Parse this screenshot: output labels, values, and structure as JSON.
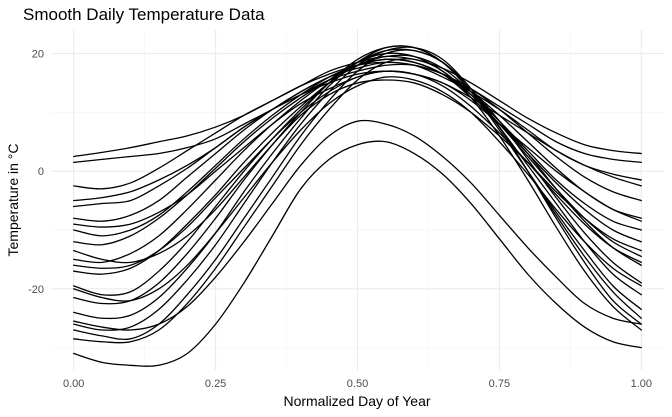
{
  "chart_data": {
    "type": "line",
    "title": "Smooth Daily Temperature Data",
    "xlabel": "Normalized Day of Year",
    "ylabel": "Temperature in °C",
    "xlim": [
      -0.04,
      1.04
    ],
    "ylim": [
      -33.8,
      24.0
    ],
    "x_ticks": [
      0.0,
      0.25,
      0.5,
      0.75,
      1.0
    ],
    "x_tick_labels": [
      "0.00",
      "0.25",
      "0.50",
      "0.75",
      "1.00"
    ],
    "y_ticks": [
      -20,
      0,
      20
    ],
    "y_tick_labels": [
      "-20",
      "0",
      "20"
    ],
    "grid": true,
    "legend": "none",
    "line_color": "#000000",
    "x": [
      0.0,
      0.05,
      0.1,
      0.15,
      0.2,
      0.25,
      0.3,
      0.35,
      0.4,
      0.45,
      0.5,
      0.55,
      0.6,
      0.65,
      0.7,
      0.75,
      0.8,
      0.85,
      0.9,
      0.95,
      1.0
    ],
    "series": [
      {
        "values": [
          2.5,
          3.2,
          4.0,
          5.0,
          6.0,
          7.5,
          9.5,
          12.0,
          14.5,
          17.0,
          18.5,
          19.5,
          19.0,
          17.5,
          15.0,
          12.0,
          9.0,
          6.5,
          4.5,
          3.5,
          3.0
        ]
      },
      {
        "values": [
          1.5,
          2.0,
          2.5,
          3.0,
          4.0,
          5.5,
          8.0,
          10.5,
          13.0,
          15.5,
          17.0,
          18.0,
          18.0,
          16.5,
          14.0,
          11.0,
          8.0,
          5.0,
          3.0,
          2.0,
          1.5
        ]
      },
      {
        "values": [
          -2.5,
          -3.0,
          -2.0,
          0.5,
          3.5,
          6.5,
          9.5,
          12.0,
          14.5,
          16.5,
          18.0,
          18.5,
          18.0,
          16.0,
          13.5,
          10.5,
          7.0,
          3.5,
          1.0,
          -0.5,
          -1.5
        ]
      },
      {
        "values": [
          -6.0,
          -5.5,
          -5.0,
          -2.5,
          0.5,
          4.0,
          7.5,
          10.5,
          13.5,
          16.0,
          17.5,
          18.5,
          18.0,
          16.5,
          14.0,
          10.5,
          6.5,
          2.5,
          -1.0,
          -3.5,
          -5.0
        ]
      },
      {
        "values": [
          -8.0,
          -8.5,
          -7.5,
          -5.0,
          -1.0,
          3.0,
          7.0,
          10.5,
          13.5,
          16.0,
          18.0,
          19.0,
          18.5,
          16.5,
          13.5,
          9.5,
          5.0,
          0.5,
          -3.5,
          -6.5,
          -8.0
        ]
      },
      {
        "values": [
          -10.0,
          -11.0,
          -10.0,
          -7.5,
          -3.5,
          1.0,
          5.5,
          9.5,
          13.0,
          16.0,
          18.0,
          19.0,
          18.5,
          16.5,
          13.0,
          8.5,
          3.5,
          -1.5,
          -5.5,
          -8.5,
          -10.0
        ]
      },
      {
        "values": [
          -12.0,
          -12.5,
          -11.0,
          -8.0,
          -4.0,
          0.5,
          5.0,
          9.0,
          12.5,
          15.5,
          18.0,
          19.0,
          18.5,
          16.5,
          12.5,
          8.0,
          3.0,
          -2.0,
          -6.5,
          -10.0,
          -12.0
        ]
      },
      {
        "values": [
          -15.0,
          -15.5,
          -14.0,
          -11.0,
          -6.5,
          -1.5,
          3.5,
          8.0,
          12.0,
          15.5,
          18.5,
          20.0,
          19.5,
          17.0,
          13.0,
          8.0,
          2.5,
          -3.0,
          -8.0,
          -12.0,
          -14.5
        ]
      },
      {
        "values": [
          -17.0,
          -17.5,
          -16.5,
          -13.5,
          -9.0,
          -4.0,
          1.5,
          6.5,
          11.0,
          15.0,
          18.0,
          19.5,
          19.5,
          17.5,
          13.5,
          8.5,
          3.0,
          -3.0,
          -8.5,
          -13.0,
          -16.0
        ]
      },
      {
        "values": [
          -19.5,
          -21.0,
          -20.5,
          -17.0,
          -12.0,
          -6.0,
          0.0,
          5.5,
          10.5,
          15.0,
          18.5,
          20.5,
          20.5,
          18.5,
          14.0,
          8.5,
          2.0,
          -4.5,
          -10.5,
          -15.5,
          -19.0
        ]
      },
      {
        "values": [
          -21.5,
          -22.5,
          -22.0,
          -19.0,
          -14.0,
          -8.0,
          -1.5,
          4.5,
          10.0,
          15.0,
          19.0,
          21.0,
          21.0,
          18.5,
          13.5,
          7.5,
          1.0,
          -5.5,
          -12.0,
          -17.5,
          -21.0
        ]
      },
      {
        "values": [
          -24.0,
          -25.0,
          -24.5,
          -21.5,
          -16.5,
          -10.5,
          -3.5,
          3.0,
          9.0,
          14.5,
          18.5,
          21.0,
          21.0,
          18.5,
          13.5,
          7.0,
          0.0,
          -7.0,
          -13.5,
          -19.5,
          -23.5
        ]
      },
      {
        "values": [
          -26.0,
          -27.0,
          -26.5,
          -23.5,
          -18.5,
          -12.5,
          -5.5,
          1.5,
          8.0,
          13.5,
          18.0,
          20.5,
          21.0,
          19.0,
          14.0,
          7.5,
          0.0,
          -7.5,
          -14.5,
          -20.5,
          -25.0
        ]
      },
      {
        "values": [
          -27.0,
          -28.0,
          -28.5,
          -26.0,
          -21.0,
          -15.0,
          -8.0,
          -1.0,
          6.0,
          12.0,
          17.0,
          20.0,
          20.5,
          18.5,
          14.0,
          7.5,
          0.0,
          -8.0,
          -15.5,
          -22.0,
          -26.0
        ]
      },
      {
        "values": [
          -28.5,
          -29.0,
          -29.0,
          -27.0,
          -22.5,
          -16.5,
          -9.5,
          -2.5,
          4.5,
          10.5,
          15.5,
          18.5,
          19.0,
          17.0,
          12.5,
          6.0,
          -1.5,
          -9.5,
          -17.0,
          -23.0,
          -27.0
        ]
      },
      {
        "values": [
          -31.0,
          -32.5,
          -33.0,
          -33.0,
          -31.0,
          -26.0,
          -19.0,
          -11.0,
          -3.0,
          2.0,
          4.5,
          5.0,
          3.0,
          -0.5,
          -5.5,
          -11.5,
          -17.5,
          -22.5,
          -26.5,
          -29.0,
          -30.0
        ]
      },
      {
        "values": [
          -25.5,
          -26.5,
          -27.0,
          -26.0,
          -23.0,
          -18.0,
          -12.0,
          -5.5,
          1.0,
          6.0,
          8.5,
          8.0,
          6.0,
          2.5,
          -2.0,
          -7.5,
          -13.0,
          -18.0,
          -22.5,
          -25.0,
          -26.0
        ]
      },
      {
        "values": [
          -13.5,
          -15.0,
          -15.5,
          -14.0,
          -11.0,
          -6.5,
          -1.0,
          4.5,
          9.5,
          13.0,
          15.0,
          15.5,
          15.0,
          13.0,
          10.0,
          6.0,
          1.5,
          -3.5,
          -8.0,
          -11.5,
          -13.5
        ]
      },
      {
        "values": [
          -5.0,
          -4.5,
          -3.5,
          -1.5,
          1.0,
          4.0,
          7.5,
          10.5,
          13.0,
          15.0,
          16.5,
          17.0,
          16.5,
          15.0,
          12.5,
          9.5,
          6.5,
          3.5,
          1.0,
          -1.0,
          -2.5
        ]
      },
      {
        "values": [
          -9.0,
          -9.5,
          -9.0,
          -7.0,
          -4.0,
          0.0,
          4.0,
          8.0,
          11.5,
          14.0,
          16.0,
          17.0,
          16.5,
          15.0,
          12.0,
          8.0,
          4.0,
          0.0,
          -3.5,
          -6.5,
          -8.5
        ]
      },
      {
        "values": [
          -20.0,
          -21.5,
          -22.0,
          -20.0,
          -16.0,
          -10.5,
          -4.5,
          1.5,
          7.0,
          11.5,
          14.5,
          16.0,
          15.5,
          13.5,
          10.0,
          5.0,
          -0.5,
          -6.5,
          -12.0,
          -16.5,
          -19.5
        ]
      },
      {
        "values": [
          -16.0,
          -16.5,
          -16.0,
          -13.5,
          -9.5,
          -4.5,
          0.5,
          5.5,
          10.0,
          13.5,
          16.0,
          17.0,
          16.5,
          14.5,
          11.0,
          6.5,
          1.5,
          -4.0,
          -9.0,
          -13.0,
          -15.5
        ]
      }
    ]
  }
}
